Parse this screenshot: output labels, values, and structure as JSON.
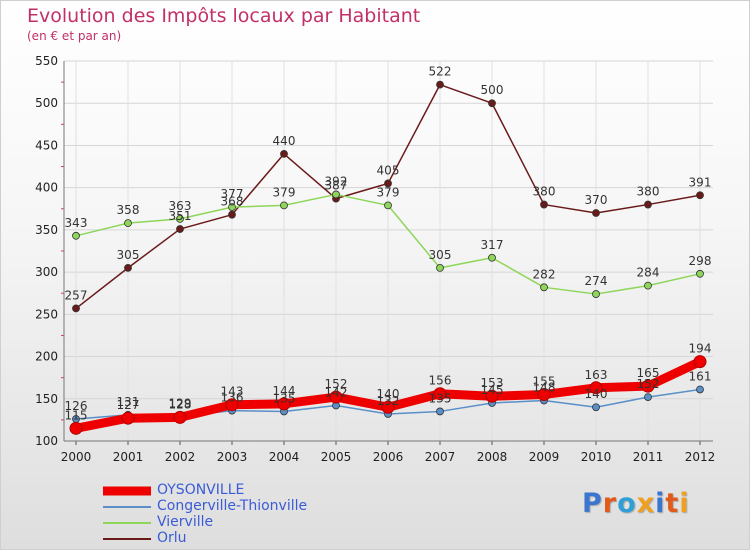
{
  "chart_data": {
    "type": "line",
    "title": "Evolution des Impôts locaux par Habitant",
    "subtitle": "(en € et par an)",
    "xlabel": "",
    "ylabel": "",
    "x": [
      "2000",
      "2001",
      "2002",
      "2003",
      "2004",
      "2005",
      "2006",
      "2007",
      "2008",
      "2009",
      "2010",
      "2011",
      "2012"
    ],
    "ylim": [
      100,
      550
    ],
    "yticks": [
      "100",
      "150",
      "200",
      "250",
      "300",
      "350",
      "400",
      "450",
      "500",
      "550"
    ],
    "legend_position": "bottom-left",
    "series": [
      {
        "name": "OYSONVILLE",
        "color": "#ee0000",
        "values": [
          115,
          127,
          128,
          143,
          144,
          152,
          140,
          156,
          153,
          155,
          163,
          165,
          194
        ]
      },
      {
        "name": "Congerville-Thionville",
        "color": "#5a8fc8",
        "values": [
          126,
          131,
          129,
          136,
          135,
          142,
          132,
          135,
          145,
          148,
          140,
          152,
          161
        ]
      },
      {
        "name": "Vierville",
        "color": "#8ed65a",
        "values": [
          343,
          358,
          363,
          377,
          379,
          392,
          379,
          305,
          317,
          282,
          274,
          284,
          298
        ]
      },
      {
        "name": "Orlu",
        "color": "#6b1a1a",
        "values": [
          257,
          305,
          351,
          368,
          440,
          387,
          405,
          522,
          500,
          380,
          370,
          380,
          391
        ]
      }
    ]
  },
  "logo": {
    "text": "Proxiti",
    "colors": [
      "#3a76d0",
      "#e25a1b",
      "#2f9fd6",
      "#f0a020",
      "#3a76d0",
      "#e25a1b",
      "#f0a020"
    ]
  }
}
